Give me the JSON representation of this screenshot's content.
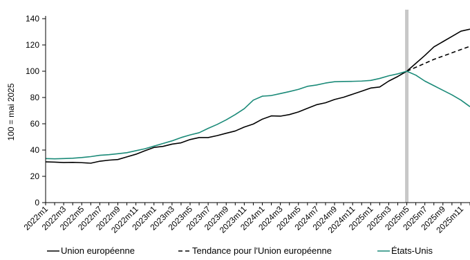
{
  "chart_data": {
    "type": "line",
    "ylabel": "100 = mai 2025",
    "ylim": [
      0,
      140
    ],
    "yticks": [
      0,
      20,
      40,
      60,
      80,
      100,
      120,
      140
    ],
    "grid": false,
    "legend_placement": "bottom",
    "x": [
      "2022m1",
      "2022m2",
      "2022m3",
      "2022m4",
      "2022m5",
      "2022m6",
      "2022m7",
      "2022m8",
      "2022m9",
      "2022m10",
      "2022m11",
      "2022m12",
      "2023m1",
      "2023m2",
      "2023m3",
      "2023m4",
      "2023m5",
      "2023m6",
      "2023m7",
      "2023m8",
      "2023m9",
      "2023m10",
      "2023m11",
      "2023m12",
      "2024m1",
      "2024m2",
      "2024m3",
      "2024m4",
      "2024m5",
      "2024m6",
      "2024m7",
      "2024m8",
      "2024m9",
      "2024m10",
      "2024m11",
      "2024m12",
      "2025m1",
      "2025m2",
      "2025m3",
      "2025m4",
      "2025m5",
      "2025m6",
      "2025m7",
      "2025m8",
      "2025m9",
      "2025m10",
      "2025m11",
      "2025m12"
    ],
    "x_tick_labels": [
      "2022m1",
      "2022m3",
      "2022m5",
      "2022m7",
      "2022m9",
      "2022m11",
      "2023m1",
      "2023m3",
      "2023m5",
      "2023m7",
      "2023m9",
      "2023m11",
      "2024m1",
      "2024m3",
      "2024m5",
      "2024m7",
      "2024m9",
      "2024m11",
      "2025m1",
      "2025m3",
      "2025m5",
      "2025m7",
      "2025m9",
      "2025m11"
    ],
    "vertical_marker": "2025m5",
    "series": [
      {
        "name": "Union européenne",
        "color": "#000000",
        "style": "solid",
        "values": [
          31,
          30.8,
          30.5,
          30.6,
          30.4,
          30,
          31.5,
          32.3,
          32.8,
          34.8,
          36.8,
          39.5,
          42,
          42.8,
          44.5,
          45.5,
          48,
          49.5,
          49.5,
          51,
          52.8,
          54.5,
          57.5,
          59.8,
          63.5,
          66,
          65.8,
          67,
          69,
          71.8,
          74.5,
          76,
          78.5,
          80.2,
          82.5,
          84.8,
          87.2,
          88,
          92.5,
          96,
          100,
          106,
          112,
          118.5,
          122.5,
          126.5,
          130.5,
          132
        ]
      },
      {
        "name": "Tendance pour l'Union européenne",
        "color": "#000000",
        "style": "dashed",
        "values": [
          null,
          null,
          null,
          null,
          null,
          null,
          null,
          null,
          null,
          null,
          null,
          null,
          null,
          null,
          null,
          null,
          null,
          null,
          null,
          null,
          null,
          null,
          null,
          null,
          null,
          null,
          null,
          null,
          null,
          null,
          null,
          null,
          null,
          null,
          null,
          null,
          null,
          null,
          null,
          null,
          100,
          103,
          106,
          109,
          111.5,
          114,
          116.5,
          119
        ]
      },
      {
        "name": "États-Unis",
        "color": "#1a8a78",
        "style": "solid",
        "values": [
          33.5,
          33.3,
          33.5,
          33.8,
          34.3,
          35,
          36,
          36.5,
          37.2,
          38,
          39.5,
          41,
          43,
          45,
          47,
          49.5,
          51.5,
          53.2,
          56.5,
          59.5,
          63,
          67,
          71.5,
          78,
          81,
          81.5,
          83,
          84.5,
          86.2,
          88.5,
          89.5,
          91,
          92,
          92.2,
          92.3,
          92.5,
          93,
          94.5,
          96.5,
          98,
          100,
          97,
          92.5,
          89,
          85.5,
          82,
          78,
          73
        ]
      }
    ]
  }
}
